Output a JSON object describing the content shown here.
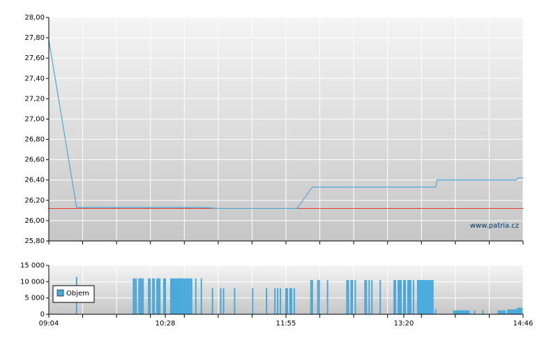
{
  "chart_data": [
    {
      "type": "line",
      "x": [
        544,
        564,
        655,
        666,
        723,
        734,
        823,
        824,
        881,
        882,
        886
      ],
      "series": [
        {
          "color": "#4aa8d8",
          "values": [
            27.78,
            26.13,
            26.13,
            26.12,
            26.12,
            26.33,
            26.33,
            26.4,
            26.4,
            26.42,
            26.42
          ]
        }
      ],
      "reference_line": {
        "value": 26.12,
        "color": "#e03c31"
      },
      "annotation": "www.patria.cz",
      "xlim": [
        544,
        886
      ],
      "ylim": [
        25.8,
        28.0
      ],
      "yticks": [
        {
          "value": 28.0,
          "label": "28,00"
        },
        {
          "value": 27.8,
          "label": "27,80"
        },
        {
          "value": 27.6,
          "label": "27,60"
        },
        {
          "value": 27.4,
          "label": "27,40"
        },
        {
          "value": 27.2,
          "label": "27,20"
        },
        {
          "value": 27.0,
          "label": "27,00"
        },
        {
          "value": 26.8,
          "label": "26,80"
        },
        {
          "value": 26.6,
          "label": "26,60"
        },
        {
          "value": 26.4,
          "label": "26,40"
        },
        {
          "value": 26.2,
          "label": "26,20"
        },
        {
          "value": 26.0,
          "label": "26,00"
        },
        {
          "value": 25.8,
          "label": "25,80"
        }
      ],
      "grid": true
    },
    {
      "type": "bar",
      "x": [
        564,
        605,
        606,
        607,
        609,
        610,
        611,
        612,
        616,
        617,
        619,
        620,
        622,
        623,
        624,
        627,
        628,
        632,
        633,
        634,
        635,
        636,
        637,
        638,
        639,
        640,
        641,
        642,
        643,
        644,
        645,
        646,
        647,
        650,
        654,
        662,
        668,
        670,
        678,
        691,
        701,
        707,
        709,
        711,
        715,
        716,
        718,
        719,
        721,
        733,
        734,
        738,
        739,
        745,
        759,
        760,
        762,
        763,
        765,
        772,
        773,
        775,
        777,
        783,
        793,
        794,
        796,
        797,
        798,
        800,
        801,
        803,
        804,
        805,
        807,
        810,
        811,
        812,
        813,
        814,
        815,
        816,
        817,
        818,
        819,
        820,
        821,
        823,
        836,
        837,
        838,
        839,
        840,
        841,
        842,
        843,
        844,
        845,
        846,
        847,
        851,
        857,
        868,
        869,
        870,
        871,
        872,
        873,
        875,
        876,
        877,
        878,
        879,
        880,
        881,
        882,
        883,
        884,
        885
      ],
      "series": [
        {
          "name": "Objem",
          "color": "#4aa8d8",
          "values": [
            11500,
            11000,
            11000,
            11000,
            11000,
            11000,
            11000,
            11000,
            11000,
            11000,
            11000,
            11000,
            11000,
            11000,
            11000,
            11000,
            11000,
            11000,
            11000,
            11000,
            11000,
            11000,
            11000,
            11000,
            11000,
            11000,
            11000,
            11000,
            11000,
            11000,
            11000,
            11000,
            11000,
            11000,
            11000,
            8000,
            8000,
            8000,
            8000,
            8000,
            8000,
            8000,
            8000,
            8000,
            8000,
            8000,
            8000,
            8000,
            8000,
            10500,
            10500,
            10500,
            10500,
            10500,
            10500,
            10500,
            10500,
            10500,
            10500,
            10500,
            10500,
            10500,
            10500,
            10500,
            10500,
            10500,
            10500,
            10500,
            10500,
            10500,
            10500,
            10500,
            10500,
            10500,
            10500,
            10500,
            10500,
            10500,
            10500,
            10500,
            10500,
            10500,
            10500,
            10500,
            10500,
            10500,
            10500,
            1500,
            1200,
            1200,
            1200,
            1200,
            1200,
            1200,
            1200,
            1200,
            1200,
            1200,
            1200,
            1200,
            1200,
            1200,
            1200,
            1200,
            1200,
            1200,
            1200,
            1200,
            1500,
            1500,
            1500,
            1500,
            1500,
            1500,
            1500,
            2000,
            2000,
            2000,
            2000
          ]
        }
      ],
      "xlim": [
        544,
        886
      ],
      "xticks": [
        {
          "value": 544,
          "label": "09:04"
        },
        {
          "value": 628,
          "label": "10:28"
        },
        {
          "value": 715,
          "label": "11:55"
        },
        {
          "value": 800,
          "label": "13:20"
        },
        {
          "value": 886,
          "label": "14:46"
        }
      ],
      "ylim": [
        0,
        15000
      ],
      "yticks": [
        {
          "value": 15000,
          "label": "15 000"
        },
        {
          "value": 10000,
          "label": "10 000"
        },
        {
          "value": 5000,
          "label": "5 000"
        },
        0
      ],
      "grid": true,
      "legend": "left"
    }
  ]
}
